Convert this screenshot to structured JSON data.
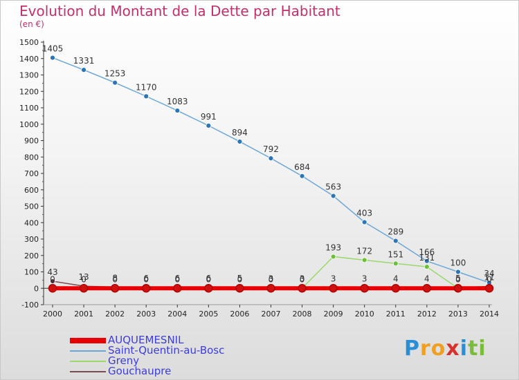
{
  "title": "Evolution du Montant de la Dette par Habitant",
  "subtitle": "(en €)",
  "logo": {
    "letters": [
      "P",
      "r",
      "o",
      "x",
      "i",
      "t",
      "i"
    ],
    "colors": [
      "#2a8ed6",
      "#f0a020",
      "#f0a020",
      "#d8302c",
      "#2a8ed6",
      "#7cbc3c",
      "#7cbc3c"
    ]
  },
  "chart_data": {
    "type": "line",
    "x": [
      2000,
      2001,
      2002,
      2003,
      2004,
      2005,
      2006,
      2007,
      2008,
      2009,
      2010,
      2011,
      2012,
      2013,
      2014
    ],
    "ylim": [
      -100,
      1500
    ],
    "yticks": [
      -100,
      0,
      100,
      200,
      300,
      400,
      500,
      600,
      700,
      800,
      900,
      1000,
      1100,
      1200,
      1300,
      1400,
      1500
    ],
    "grid": false,
    "legend_position": "bottom-left",
    "series": [
      {
        "name": "AUQUEMESNIL",
        "color": "#e80000",
        "marker": "#d01010",
        "values": [
          0,
          0,
          0,
          0,
          0,
          0,
          0,
          0,
          0,
          0,
          0,
          0,
          0,
          0,
          0
        ],
        "labels": []
      },
      {
        "name": "Saint-Quentin-au-Bosc",
        "color": "#6aa6d8",
        "marker": "#2c76b8",
        "values": [
          1405,
          1331,
          1253,
          1170,
          1083,
          991,
          894,
          792,
          684,
          563,
          403,
          289,
          166,
          100,
          34
        ],
        "labels": [
          "1405",
          "1331",
          "1253",
          "1170",
          "1083",
          "991",
          "894",
          "792",
          "684",
          "563",
          "403",
          "289",
          "166",
          "100",
          "34"
        ]
      },
      {
        "name": "Greny",
        "color": "#9ad86a",
        "marker": "#6cc03a",
        "values": [
          0,
          0,
          0,
          0,
          0,
          0,
          0,
          0,
          0,
          193,
          172,
          151,
          131,
          0,
          0
        ],
        "labels": [
          "0",
          "0",
          "0",
          "0",
          "0",
          "0",
          "0",
          "0",
          "0",
          "193",
          "172",
          "151",
          "131",
          "0",
          "0"
        ]
      },
      {
        "name": "Gouchaupre",
        "color": "#7a4a50",
        "marker": "#5a3038",
        "values": [
          43,
          13,
          8,
          6,
          6,
          6,
          5,
          3,
          3,
          3,
          3,
          4,
          4,
          5,
          11
        ],
        "labels": [
          "43",
          "13",
          "8",
          "6",
          "6",
          "6",
          "5",
          "3",
          "3",
          "3",
          "3",
          "4",
          "4",
          "5",
          "11"
        ]
      }
    ]
  }
}
